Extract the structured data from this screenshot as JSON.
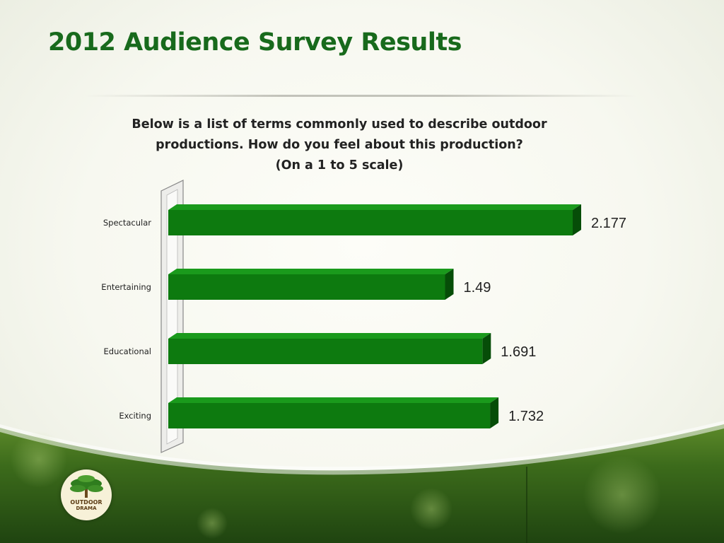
{
  "slide": {
    "title": "2012 Audience Survey Results",
    "question_lines": [
      "Below is a list of terms commonly used to describe outdoor",
      "productions.  How do you feel about this production?",
      "(On a 1 to 5 scale)"
    ],
    "logo": {
      "line1": "OUTDOOR",
      "line2": "DRAMA"
    }
  },
  "colors": {
    "title": "#186a1c",
    "bar": "#0d7a0f",
    "bar_top": "#1a9a1c",
    "bar_side": "#064d08",
    "band": "#3f6e1c"
  },
  "chart_data": {
    "type": "bar",
    "orientation": "horizontal",
    "categories": [
      "Spectacular",
      "Entertaining",
      "Educational",
      "Exciting"
    ],
    "values": [
      2.177,
      1.49,
      1.691,
      1.732
    ],
    "data_labels": [
      "2.177",
      "1.49",
      "1.691",
      "1.732"
    ],
    "title": "",
    "xlabel": "",
    "ylabel": "",
    "xlim": [
      0,
      2.177
    ],
    "grid": false,
    "legend": "none",
    "style": "3d"
  }
}
